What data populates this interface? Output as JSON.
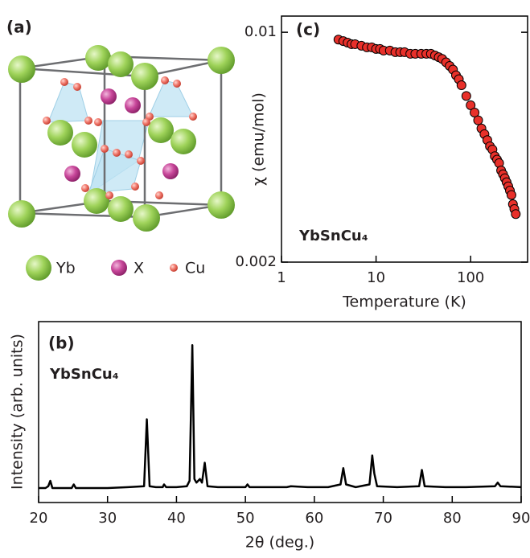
{
  "structure": {
    "label": "(a)",
    "legend": [
      "Yb",
      "X",
      "Cu"
    ]
  },
  "chart_data": [
    {
      "type": "scatter",
      "label": "(c)",
      "annotation": "YbSnCu₄",
      "x_label": "Temperature (K)",
      "y_label": "χ (emu/mol)",
      "log_x": true,
      "log_y": true,
      "color": "#e8302a",
      "xlim": [
        1,
        400
      ],
      "ylim": [
        0.002,
        0.0112
      ],
      "xticks": [
        1,
        10,
        100
      ],
      "yticks": [
        0.002,
        0.01
      ],
      "x": [
        4,
        4.5,
        5,
        5.5,
        6,
        7,
        8,
        9,
        10,
        11,
        12,
        14,
        16,
        18,
        20,
        23,
        26,
        30,
        34,
        38,
        42,
        46,
        50,
        55,
        60,
        65,
        70,
        75,
        80,
        90,
        100,
        110,
        120,
        130,
        140,
        150,
        160,
        170,
        180,
        190,
        200,
        210,
        220,
        230,
        240,
        250,
        260,
        270,
        280,
        290,
        300
      ],
      "values": [
        0.0095,
        0.0094,
        0.0093,
        0.0092,
        0.0092,
        0.0091,
        0.009,
        0.009,
        0.0089,
        0.0089,
        0.0088,
        0.0088,
        0.0087,
        0.0087,
        0.0087,
        0.0086,
        0.0086,
        0.0086,
        0.0086,
        0.0086,
        0.0085,
        0.0084,
        0.0083,
        0.0081,
        0.0079,
        0.0077,
        0.0074,
        0.0072,
        0.0069,
        0.0064,
        0.006,
        0.0057,
        0.0054,
        0.0051,
        0.0049,
        0.0047,
        0.0045,
        0.0044,
        0.0042,
        0.0041,
        0.004,
        0.0038,
        0.0037,
        0.0036,
        0.0035,
        0.0034,
        0.0033,
        0.0032,
        0.003,
        0.0029,
        0.0028
      ]
    },
    {
      "type": "line",
      "label": "(b)",
      "annotation": "YbSnCu₄",
      "x_label": "2θ (deg.)",
      "y_label": "Intensity (arb. units)",
      "color": "#000000",
      "xlim": [
        20,
        90
      ],
      "ylim": [
        0,
        100
      ],
      "xticks": [
        20,
        30,
        40,
        50,
        60,
        70,
        80,
        90
      ],
      "x": [
        20,
        21,
        21.4,
        21.7,
        22,
        23,
        24.8,
        25.1,
        25.4,
        27,
        30,
        33,
        35.3,
        35.7,
        36.1,
        37,
        38,
        38.2,
        38.5,
        40,
        41.5,
        41.9,
        42.3,
        42.6,
        42.9,
        43.4,
        43.7,
        44.1,
        44.5,
        46,
        48,
        50,
        50.3,
        50.6,
        53,
        56,
        56.6,
        59,
        62,
        63.8,
        64.2,
        64.6,
        66,
        68,
        68.4,
        68.7,
        69.1,
        72,
        75.2,
        75.6,
        76,
        79,
        82,
        86.2,
        86.6,
        87,
        90
      ],
      "values": [
        8,
        8,
        9,
        12,
        8,
        8,
        8,
        10,
        8,
        8,
        8,
        8.5,
        9,
        46,
        9,
        8.5,
        8.5,
        10,
        8.5,
        8.5,
        9,
        12,
        87,
        13,
        11,
        13,
        11,
        22,
        9,
        8.5,
        8.5,
        8.5,
        10,
        8.5,
        8.5,
        8.5,
        9,
        8.5,
        8.5,
        10,
        19,
        10,
        8.5,
        10,
        26,
        16,
        9,
        8.5,
        9,
        18,
        9,
        8.5,
        8.5,
        9,
        11,
        9,
        8.5
      ]
    }
  ]
}
